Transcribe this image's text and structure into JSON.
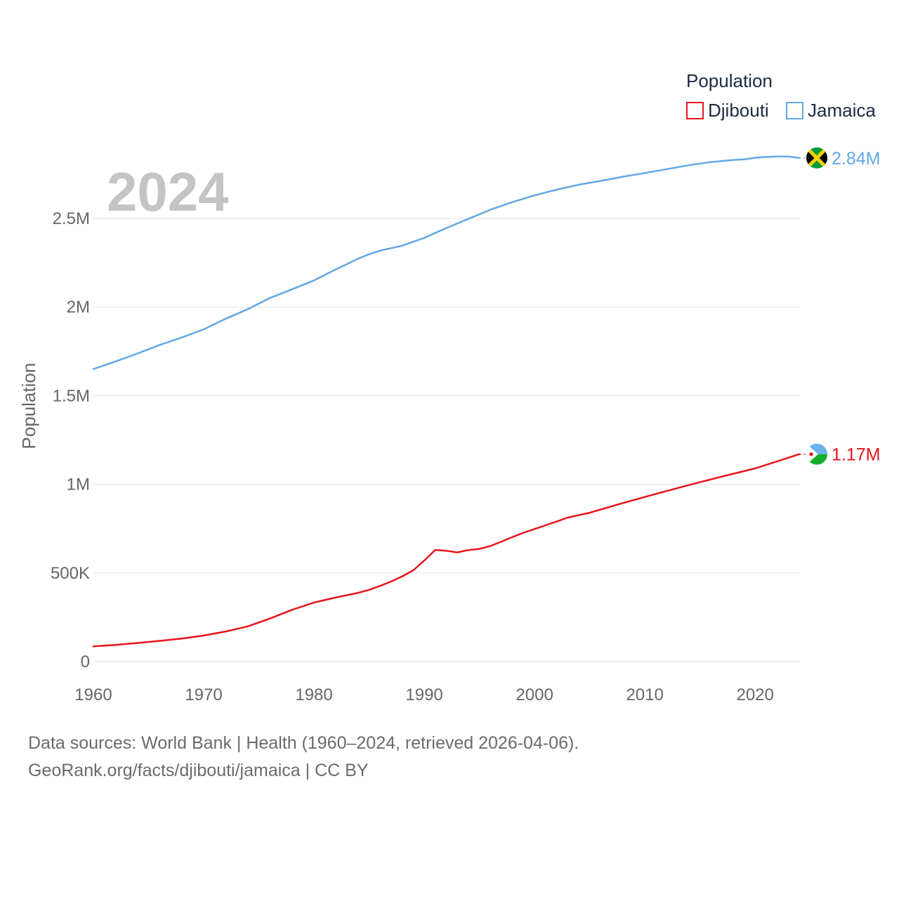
{
  "chart_data": {
    "type": "line",
    "title": "",
    "big_year_label": "2024",
    "ylabel": "Population",
    "xlabel": "",
    "xlim": [
      1960,
      2024
    ],
    "ylim": [
      0,
      2900000
    ],
    "x_ticks": [
      1960,
      1970,
      1980,
      1990,
      2000,
      2010,
      2020
    ],
    "x_tick_labels": [
      "1960",
      "1970",
      "1980",
      "1990",
      "2000",
      "2010",
      "2020"
    ],
    "y_ticks": [
      0,
      500000,
      1000000,
      1500000,
      2000000,
      2500000
    ],
    "y_tick_labels": [
      "0",
      "500K",
      "1M",
      "1.5M",
      "2M",
      "2.5M"
    ],
    "grid": true,
    "legend": {
      "title": "Population",
      "position": "top-right",
      "entries": [
        "Djibouti",
        "Jamaica"
      ]
    },
    "series": [
      {
        "name": "Djibouti",
        "color": "#e8141c",
        "end_label": "1.17M",
        "flag": "djibouti-flag",
        "x": [
          1960,
          1962,
          1964,
          1966,
          1968,
          1970,
          1972,
          1974,
          1976,
          1978,
          1980,
          1982,
          1984,
          1985,
          1986,
          1987,
          1988,
          1989,
          1990,
          1991,
          1992,
          1993,
          1994,
          1995,
          1996,
          1997,
          1998,
          1999,
          2000,
          2002,
          2003,
          2005,
          2008,
          2011,
          2014,
          2017,
          2020,
          2022,
          2024
        ],
        "values": [
          86000,
          94000,
          105000,
          117000,
          130000,
          147000,
          170000,
          199000,
          243000,
          292000,
          333000,
          362000,
          388000,
          405000,
          427000,
          452000,
          481000,
          515000,
          570000,
          630000,
          625000,
          616000,
          629000,
          636000,
          652000,
          677000,
          703000,
          727000,
          748000,
          790000,
          812000,
          840000,
          894000,
          946000,
          996000,
          1044000,
          1090000,
          1130000,
          1170000
        ]
      },
      {
        "name": "Jamaica",
        "color": "#62a8e5",
        "end_label": "2.84M",
        "flag": "jamaica-flag",
        "x": [
          1960,
          1962,
          1964,
          1966,
          1968,
          1970,
          1972,
          1974,
          1976,
          1978,
          1980,
          1982,
          1984,
          1985,
          1986,
          1988,
          1990,
          1992,
          1994,
          1996,
          1998,
          2000,
          2002,
          2004,
          2006,
          2008,
          2010,
          2012,
          2014,
          2016,
          2018,
          2019,
          2020,
          2021,
          2022,
          2023,
          2024
        ],
        "values": [
          1650000,
          1693000,
          1738000,
          1786000,
          1828000,
          1874000,
          1934000,
          1988000,
          2051000,
          2100000,
          2150000,
          2213000,
          2273000,
          2298000,
          2318000,
          2346000,
          2390000,
          2446000,
          2497000,
          2549000,
          2592000,
          2630000,
          2662000,
          2690000,
          2712000,
          2735000,
          2756000,
          2778000,
          2800000,
          2818000,
          2830000,
          2833000,
          2842000,
          2847000,
          2849000,
          2849000,
          2841000
        ]
      }
    ]
  },
  "footer": {
    "line1": "Data sources: World Bank | Health (1960–2024, retrieved 2026-04-06).",
    "line2": "GeoRank.org/facts/djibouti/jamaica | CC BY"
  }
}
